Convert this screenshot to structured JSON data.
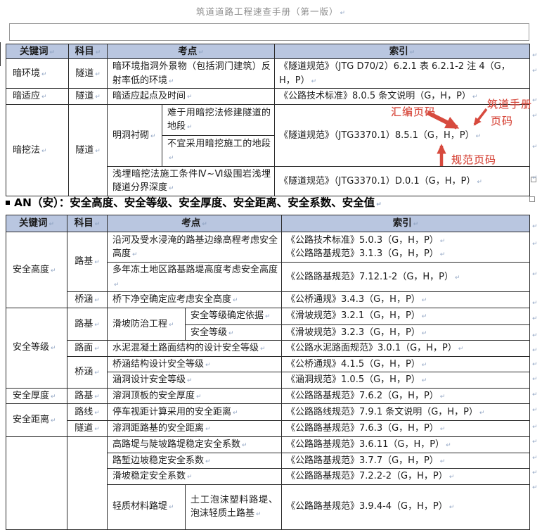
{
  "page": {
    "title": "筑道道路工程速查手册（第一版）"
  },
  "columns": {
    "keyword": "关键词",
    "subject": "科目",
    "point": "考点",
    "index": "索引"
  },
  "section_heading": "AN（安）：安全高度、安全等级、安全厚度、安全距离、安全系数、安全值",
  "annotations": {
    "compilation_page": "汇编页码",
    "manual_page_line1": "筑道手册",
    "manual_page_line2": "页码",
    "spec_page": "规范页码"
  },
  "colors": {
    "table_header_bg": "#b9c6e0",
    "annotation_red": "#d74a3e",
    "title_gray": "#8d8d8d"
  },
  "table1": {
    "rows": {
      "r1": {
        "keyword": "暗环境",
        "subject": "隧道",
        "point": "暗环境指洞外景物（包括洞门建筑）反射率低的环境",
        "index": "《隧道规范》（JTG D70/2）6.2.1 表 6.2.1-2 注 4（G，H，P）"
      },
      "r2": {
        "keyword": "暗适应",
        "subject": "隧道",
        "point": "暗适应起点及时间",
        "index": "《公路技术标准》8.0.5 条文说明（G，H，P）"
      },
      "r3": {
        "keyword": "暗挖法",
        "subject": "隧道",
        "point_group": "明洞衬砌",
        "sub1": "难于用暗挖法修建隧道的地段",
        "sub2": "不宜采用暗挖施工的地段",
        "index_a": "《隧道规范》（JTG3370.1）8.5.1（G，H，P）",
        "point2": "浅埋暗挖法施工条件Ⅳ~Ⅵ级围岩浅埋隧道分界深度",
        "index_b": "《隧道规范》（JTG3370.1）D.0.1（G，H，P）"
      }
    }
  },
  "table2": {
    "rows": [
      {
        "keyword": "安全高度",
        "subject": "路基",
        "point": "沿河及受水浸淹的路基边缘高程考虑安全高度",
        "index_a": "《公路技术标准》5.0.3（G，H，P）",
        "index_b": "《公路路基规范》3.1.3（G，H，P）"
      },
      {
        "point": "多年冻土地区路基路堤高度考虑安全高度",
        "index": "《公路路基规范》7.12.1-2（G，H，P）"
      },
      {
        "subject": "桥涵",
        "point": "桥下净空确定应考虑安全高度",
        "index": "《公桥通规》3.4.3（G，H，P）"
      },
      {
        "keyword": "安全等级",
        "subject": "路基",
        "group": "滑坡防治工程",
        "sub": "安全等级确定依据",
        "index": "《滑坡规范》3.2.1（G，H，P）"
      },
      {
        "sub": "安全等级",
        "index": "《滑坡规范》3.2.3（G，H，P）"
      },
      {
        "subject": "路面",
        "point": "水泥混凝土路面结构的设计安全等级",
        "index": "《公路水泥路面规范》3.0.1（G，H，P）"
      },
      {
        "subject": "桥涵",
        "point": "桥涵结构设计安全等级",
        "index": "《公桥通规》4.1.5（G，H，P）"
      },
      {
        "point": "涵洞设计安全等级",
        "index": "《涵洞规范》1.0.5（G，H，P）"
      },
      {
        "keyword": "安全厚度",
        "subject": "路基",
        "point": "溶洞顶板的安全厚度",
        "index": "《公路路基规范》7.6.2（G，H，P）"
      },
      {
        "keyword": "安全距离",
        "subject": "路线",
        "point": "停车视距计算采用的安全距离",
        "index": "《公路路线规范》7.9.1 条文说明（G，H，P）"
      },
      {
        "subject": "隧道",
        "point": "溶洞距路基的安全距离",
        "index": "《公路路基规范》7.6.3（G，H，P）"
      },
      {
        "keyword": "",
        "subject": "",
        "point": "高路堤与陡坡路堤稳定安全系数",
        "index": "《公路路基规范》3.6.11（G，H，P）"
      },
      {
        "point": "路堑边坡稳定安全系数",
        "index": "《公路路基规范》3.7.7（G，H，P）"
      },
      {
        "point": "滑坡稳定安全系数",
        "index": "《公路路基规范》7.2.2-2（G，H，P）"
      },
      {
        "group": "轻质材料路堤",
        "sub": "土工泡沫塑料路堤、泡沫轻质土路基",
        "index": "《公路路基规范》3.9.4-4（G，H，P）"
      }
    ]
  }
}
